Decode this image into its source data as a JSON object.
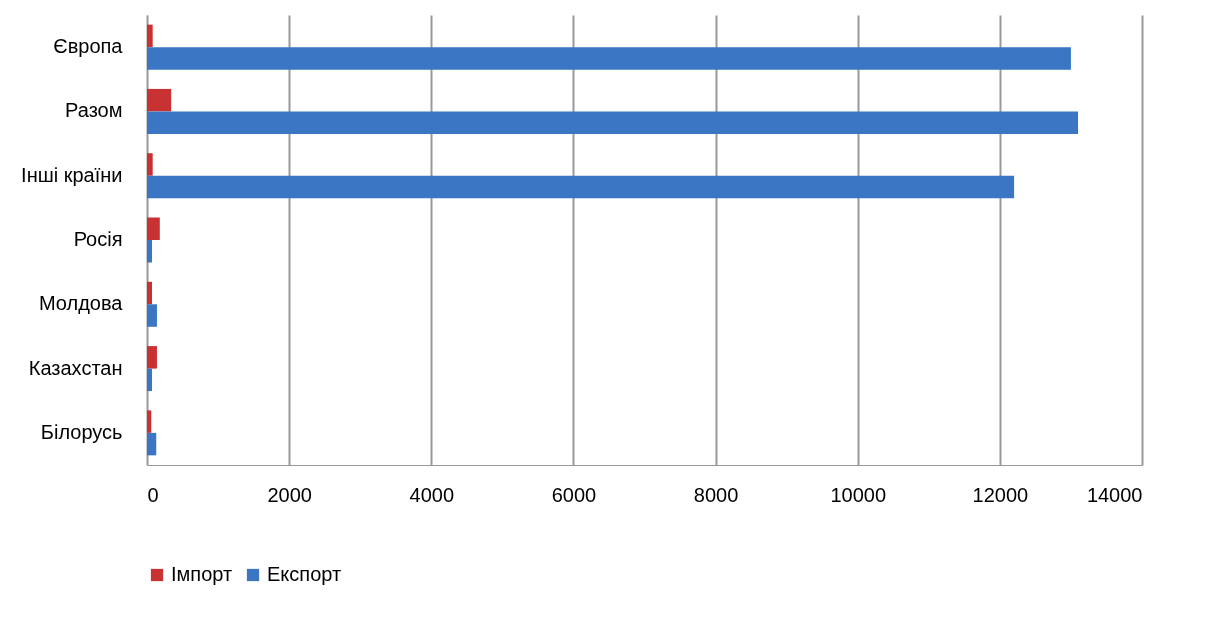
{
  "chart_data": {
    "type": "bar",
    "orientation": "horizontal",
    "categories": [
      "Європа",
      "Разом",
      "Інші країни",
      "Росія",
      "Молдова",
      "Казахстан",
      "Білорусь"
    ],
    "series": [
      {
        "name": "Імпорт",
        "color": "#c83232",
        "values": [
          80,
          340,
          80,
          180,
          70,
          140,
          60
        ]
      },
      {
        "name": "Експорт",
        "color": "#3a76c4",
        "values": [
          13000,
          13100,
          12200,
          70,
          140,
          70,
          130
        ]
      }
    ],
    "xlim": [
      0,
      14000
    ],
    "xticks": [
      0,
      2000,
      4000,
      6000,
      8000,
      10000,
      12000,
      14000
    ],
    "grid": "x",
    "legend": "bottom"
  }
}
